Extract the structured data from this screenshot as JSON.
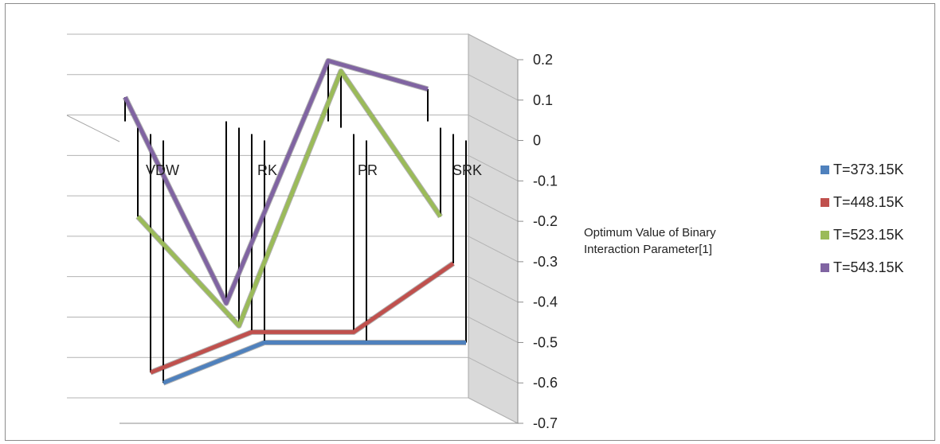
{
  "chart_data": {
    "type": "line",
    "title": "",
    "xlabel": "",
    "ylabel": "Optimum Value of Binary Interaction Parameter[1]",
    "categories": [
      "VDW",
      "RK",
      "PR",
      "SRK"
    ],
    "ylim": [
      -0.7,
      0.2
    ],
    "yticks": [
      "0.2",
      "0.1",
      "0",
      "-0.1",
      "-0.2",
      "-0.3",
      "-0.4",
      "-0.5",
      "-0.6",
      "-0.7"
    ],
    "grid": true,
    "legend_position": "right",
    "series": [
      {
        "name": "T=373.15K",
        "color": "#4f81bd",
        "values": [
          -0.6,
          -0.5,
          -0.5,
          -0.5
        ]
      },
      {
        "name": "T=448.15K",
        "color": "#c0504d",
        "values": [
          -0.59,
          -0.49,
          -0.49,
          -0.32
        ]
      },
      {
        "name": "T=523.15K",
        "color": "#9bbb59",
        "values": [
          -0.22,
          -0.49,
          0.14,
          -0.22
        ]
      },
      {
        "name": "T=543.15K",
        "color": "#8064a2",
        "values": [
          0.06,
          -0.45,
          0.15,
          0.08
        ]
      }
    ]
  }
}
